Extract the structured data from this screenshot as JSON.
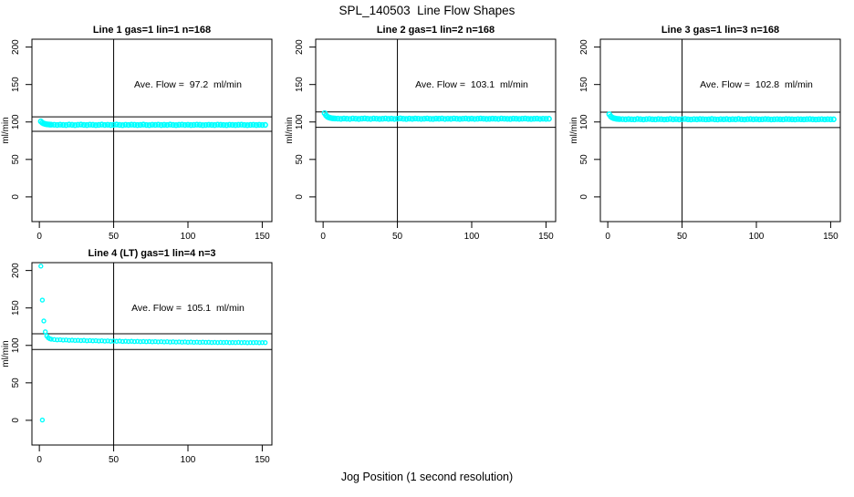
{
  "page": {
    "title": "SPL_140503  Line Flow Shapes",
    "xlabel": "Jog Position (1 second resolution)"
  },
  "style": {
    "point_color": "#00ffff",
    "axis_color": "#000000",
    "background": "#ffffff"
  },
  "chart_data": [
    {
      "type": "scatter",
      "title": "Line 1 gas=1 lin=1 n=168",
      "annotation": "Ave. Flow =  97.2  ml/min",
      "annotation_pos": {
        "x": 100,
        "y": 150
      },
      "ave_flow_ml_min": 97.2,
      "ref_lines_y": [
        106.9,
        87.5
      ],
      "vline_x": 50,
      "xlim": [
        -5,
        156.5
      ],
      "ylim": [
        -33,
        210.5
      ],
      "xticks": [
        0,
        50,
        100,
        150
      ],
      "yticks": [
        0,
        50,
        100,
        150,
        200
      ],
      "ylabel": "ml/min",
      "x": [
        1,
        2,
        3,
        4,
        5,
        6,
        7,
        8,
        10,
        12,
        14,
        16,
        18,
        20,
        22,
        24,
        26,
        28,
        30,
        32,
        34,
        36,
        38,
        40,
        42,
        44,
        46,
        48,
        50,
        52,
        54,
        56,
        58,
        60,
        62,
        64,
        66,
        68,
        70,
        72,
        74,
        76,
        78,
        80,
        82,
        84,
        86,
        88,
        90,
        92,
        94,
        96,
        98,
        100,
        102,
        104,
        106,
        108,
        110,
        112,
        114,
        116,
        118,
        120,
        122,
        124,
        126,
        128,
        130,
        132,
        134,
        136,
        138,
        140,
        142,
        144,
        146,
        148,
        150,
        152
      ],
      "y": [
        100.8,
        98.9,
        97.9,
        97.3,
        96.9,
        96.7,
        96.5,
        96.4,
        96.3,
        96.0,
        96.4,
        96.1,
        95.9,
        96.5,
        96.2,
        95.8,
        96.3,
        96.6,
        96.1,
        95.9,
        96.4,
        96.2,
        95.8,
        96.1,
        96.5,
        96.0,
        96.3,
        95.9,
        96.2,
        96.6,
        96.1,
        95.8,
        96.3,
        96.0,
        96.4,
        96.2,
        95.9,
        96.1,
        96.5,
        96.0,
        95.8,
        96.3,
        96.1,
        96.4,
        95.9,
        96.2,
        96.0,
        96.5,
        96.1,
        95.8,
        96.2,
        96.4,
        96.0,
        96.3,
        95.9,
        96.1,
        96.4,
        96.2,
        95.8,
        96.0,
        96.3,
        96.1,
        95.9,
        96.4,
        96.2,
        96.0,
        95.8,
        96.3,
        96.1,
        95.9,
        96.2,
        96.4,
        96.0,
        95.8,
        96.1,
        96.3,
        95.9,
        96.2,
        96.0,
        96.1
      ],
      "extra_points": []
    },
    {
      "type": "scatter",
      "title": "Line 2 gas=1 lin=2 n=168",
      "annotation": "Ave. Flow =  103.1  ml/min",
      "annotation_pos": {
        "x": 100,
        "y": 150
      },
      "ave_flow_ml_min": 103.1,
      "ref_lines_y": [
        113.4,
        92.8
      ],
      "vline_x": 50,
      "xlim": [
        -5,
        156.5
      ],
      "ylim": [
        -33,
        210.5
      ],
      "xticks": [
        0,
        50,
        100,
        150
      ],
      "yticks": [
        0,
        50,
        100,
        150,
        200
      ],
      "ylabel": "ml/min",
      "x": [
        1,
        2,
        3,
        4,
        5,
        6,
        7,
        8,
        10,
        12,
        14,
        16,
        18,
        20,
        22,
        24,
        26,
        28,
        30,
        32,
        34,
        36,
        38,
        40,
        42,
        44,
        46,
        48,
        50,
        52,
        54,
        56,
        58,
        60,
        62,
        64,
        66,
        68,
        70,
        72,
        74,
        76,
        78,
        80,
        82,
        84,
        86,
        88,
        90,
        92,
        94,
        96,
        98,
        100,
        102,
        104,
        106,
        108,
        110,
        112,
        114,
        116,
        118,
        120,
        122,
        124,
        126,
        128,
        130,
        132,
        134,
        136,
        138,
        140,
        142,
        144,
        146,
        148,
        150,
        152
      ],
      "y": [
        111.8,
        108.7,
        106.9,
        106.0,
        105.4,
        105.0,
        104.8,
        104.6,
        104.5,
        104.2,
        104.6,
        104.3,
        104.1,
        104.7,
        104.4,
        104.0,
        104.5,
        104.8,
        104.3,
        104.1,
        104.6,
        104.4,
        104.0,
        104.3,
        104.7,
        104.2,
        104.5,
        104.1,
        104.4,
        104.8,
        104.3,
        104.0,
        104.5,
        104.2,
        104.6,
        104.4,
        104.1,
        104.3,
        104.7,
        104.2,
        104.0,
        104.5,
        104.3,
        104.6,
        104.1,
        104.4,
        104.2,
        104.7,
        104.3,
        104.0,
        104.4,
        104.6,
        104.2,
        104.5,
        104.1,
        104.3,
        104.6,
        104.4,
        104.0,
        104.2,
        104.5,
        104.3,
        104.1,
        104.6,
        104.4,
        104.2,
        104.0,
        104.5,
        104.3,
        104.1,
        104.4,
        104.6,
        104.2,
        104.0,
        104.3,
        104.5,
        104.1,
        104.4,
        104.2,
        104.3
      ],
      "extra_points": []
    },
    {
      "type": "scatter",
      "title": "Line 3 gas=1 lin=3 n=168",
      "annotation": "Ave. Flow =  102.8  ml/min",
      "annotation_pos": {
        "x": 100,
        "y": 150
      },
      "ave_flow_ml_min": 102.8,
      "ref_lines_y": [
        113.1,
        92.5
      ],
      "vline_x": 50,
      "xlim": [
        -5,
        156.5
      ],
      "ylim": [
        -33,
        210.5
      ],
      "xticks": [
        0,
        50,
        100,
        150
      ],
      "yticks": [
        0,
        50,
        100,
        150,
        200
      ],
      "ylabel": "ml/min",
      "x": [
        1,
        2,
        3,
        4,
        5,
        6,
        7,
        8,
        10,
        12,
        14,
        16,
        18,
        20,
        22,
        24,
        26,
        28,
        30,
        32,
        34,
        36,
        38,
        40,
        42,
        44,
        46,
        48,
        50,
        52,
        54,
        56,
        58,
        60,
        62,
        64,
        66,
        68,
        70,
        72,
        74,
        76,
        78,
        80,
        82,
        84,
        86,
        88,
        90,
        92,
        94,
        96,
        98,
        100,
        102,
        104,
        106,
        108,
        110,
        112,
        114,
        116,
        118,
        120,
        122,
        124,
        126,
        128,
        130,
        132,
        134,
        136,
        138,
        140,
        142,
        144,
        146,
        148,
        150,
        152
      ],
      "y": [
        110.3,
        107.4,
        105.9,
        105.1,
        104.6,
        104.2,
        104.0,
        103.9,
        103.8,
        103.5,
        103.9,
        103.6,
        103.4,
        104.0,
        103.7,
        103.3,
        103.8,
        104.1,
        103.6,
        103.4,
        103.9,
        103.7,
        103.3,
        103.6,
        104.0,
        103.5,
        103.8,
        103.4,
        103.7,
        104.1,
        103.6,
        103.3,
        103.8,
        103.5,
        103.9,
        103.7,
        103.4,
        103.6,
        104.0,
        103.5,
        103.3,
        103.8,
        103.6,
        103.9,
        103.4,
        103.7,
        103.5,
        104.0,
        103.6,
        103.3,
        103.7,
        103.9,
        103.5,
        103.8,
        103.4,
        103.6,
        103.9,
        103.7,
        103.3,
        103.5,
        103.8,
        103.6,
        103.4,
        103.9,
        103.7,
        103.5,
        103.3,
        103.8,
        103.6,
        103.4,
        103.7,
        103.9,
        103.5,
        103.3,
        103.6,
        103.8,
        103.4,
        103.7,
        103.5,
        103.6
      ],
      "extra_points": []
    },
    {
      "type": "scatter",
      "title": "Line 4 (LT) gas=1 lin=4 n=3",
      "annotation": "Ave. Flow =  105.1  ml/min",
      "annotation_pos": {
        "x": 100,
        "y": 150
      },
      "ave_flow_ml_min": 105.1,
      "ref_lines_y": [
        115.6,
        94.6
      ],
      "vline_x": 50,
      "xlim": [
        -5,
        156.5
      ],
      "ylim": [
        -33,
        210.5
      ],
      "xticks": [
        0,
        50,
        100,
        150
      ],
      "yticks": [
        0,
        50,
        100,
        150,
        200
      ],
      "ylabel": "ml/min",
      "x": [
        1,
        2,
        3,
        4,
        5,
        6,
        7,
        8,
        10,
        12,
        14,
        16,
        18,
        20,
        22,
        24,
        26,
        28,
        30,
        32,
        34,
        36,
        38,
        40,
        42,
        44,
        46,
        48,
        50,
        52,
        54,
        56,
        58,
        60,
        62,
        64,
        66,
        68,
        70,
        72,
        74,
        76,
        78,
        80,
        82,
        84,
        86,
        88,
        90,
        92,
        94,
        96,
        98,
        100,
        102,
        104,
        106,
        108,
        110,
        112,
        114,
        116,
        118,
        120,
        122,
        124,
        126,
        128,
        130,
        132,
        134,
        136,
        138,
        140,
        142,
        144,
        146,
        148,
        150,
        152
      ],
      "y": [
        205.8,
        160.5,
        132.6,
        118.2,
        112.6,
        110.1,
        108.9,
        108.3,
        107.8,
        107.4,
        107.6,
        107.1,
        107.3,
        106.8,
        107.0,
        106.6,
        106.8,
        106.4,
        106.7,
        106.2,
        106.5,
        106.1,
        106.3,
        105.9,
        106.2,
        105.7,
        106.0,
        105.6,
        105.9,
        105.5,
        105.8,
        105.3,
        105.6,
        105.2,
        105.5,
        105.1,
        105.4,
        105.0,
        105.3,
        104.9,
        105.2,
        104.8,
        105.1,
        104.7,
        105.0,
        104.6,
        104.9,
        104.5,
        104.8,
        104.4,
        104.7,
        104.3,
        104.6,
        104.2,
        104.5,
        104.1,
        104.4,
        104.0,
        104.3,
        104.1,
        104.2,
        103.9,
        104.1,
        103.8,
        104.0,
        103.9,
        104.1,
        103.7,
        103.9,
        103.8,
        104.0,
        103.7,
        103.9,
        103.6,
        103.8,
        103.7,
        103.9,
        103.6,
        103.8,
        103.7
      ],
      "extra_points": [
        [
          2,
          0.4
        ]
      ]
    }
  ]
}
